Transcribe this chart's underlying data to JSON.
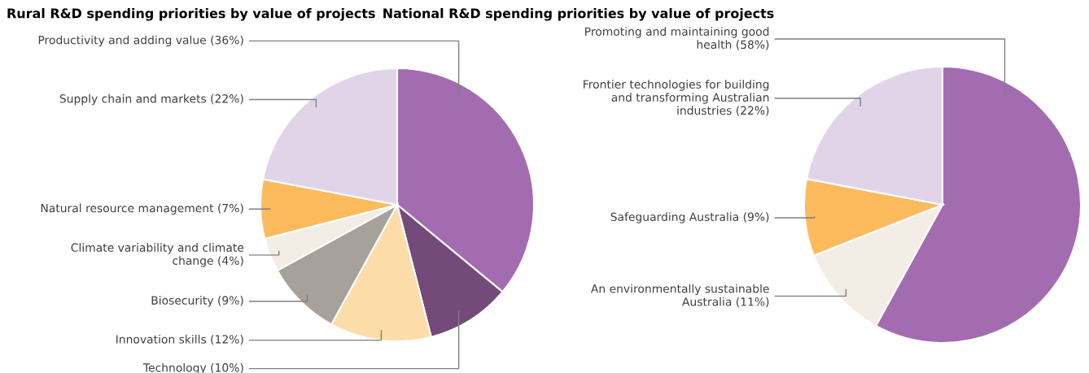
{
  "chart_data": [
    {
      "type": "pie",
      "title": "Rural R&D spending priorities by value of projects",
      "categories": [
        "Productivity and adding value",
        "Technology",
        "Innovation skills",
        "Biosecurity",
        "Climate variability and climate change",
        "Natural resource management",
        "Supply chain and markets"
      ],
      "values": [
        36,
        10,
        12,
        9,
        4,
        7,
        22
      ],
      "value_labels": [
        "(36%)",
        "(10%)",
        "(12%)",
        "(9%)",
        "(4%)",
        "(7%)",
        "(22%)"
      ],
      "colors": [
        "#a36cb0",
        "#734a7a",
        "#fcdca8",
        "#a6a19a",
        "#f3ede6",
        "#fbbb5d",
        "#e2d4e8"
      ]
    },
    {
      "type": "pie",
      "title": "National R&D spending priorities by value of projects",
      "categories": [
        "Promoting and maintaining good health",
        "An environmentally sustainable Australia",
        "Safeguarding Australia",
        "Frontier technologies for building and transforming Australian industries"
      ],
      "values": [
        58,
        11,
        9,
        22
      ],
      "value_labels": [
        "(58%)",
        "(11%)",
        "(9%)",
        "(22%)"
      ],
      "colors": [
        "#a36cb0",
        "#f3ede6",
        "#fbbb5d",
        "#e2d4e8"
      ]
    }
  ]
}
